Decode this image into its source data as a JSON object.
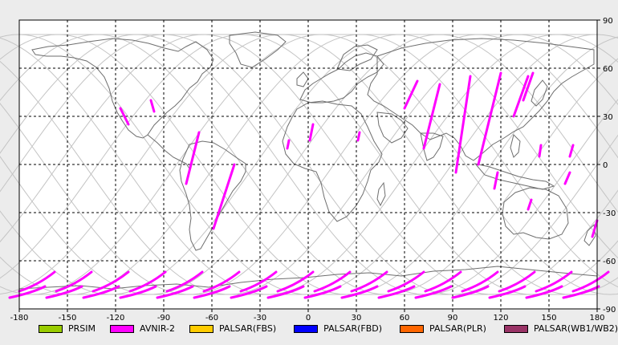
{
  "map": {
    "x_ticks": [
      "-180",
      "-150",
      "-120",
      "-90",
      "-60",
      "-30",
      "0",
      "30",
      "60",
      "90",
      "120",
      "150",
      "180"
    ],
    "y_ticks": [
      "90",
      "60",
      "30",
      "0",
      "-30",
      "-60",
      "-90"
    ],
    "colors": {
      "background": "#ffffff",
      "coast": "#6e6e6e",
      "orbit": "#c4c4c4",
      "grid": "#000000",
      "swath": "#ff00ff"
    }
  },
  "legend": [
    {
      "label": "PRSIM",
      "color": "#99cc00"
    },
    {
      "label": "AVNIR-2",
      "color": "#ff00ff"
    },
    {
      "label": "PALSAR(FBS)",
      "color": "#ffcc00"
    },
    {
      "label": "PALSAR(FBD)",
      "color": "#0000ff"
    },
    {
      "label": "PALSAR(PLR)",
      "color": "#ff6600"
    },
    {
      "label": "PALSAR(WB1/WB2)",
      "color": "#993366"
    }
  ]
}
